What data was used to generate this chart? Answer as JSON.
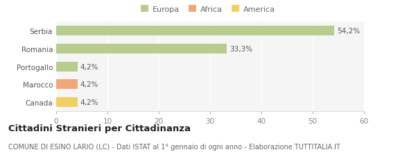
{
  "categories": [
    "Canada",
    "Marocco",
    "Portogallo",
    "Romania",
    "Serbia"
  ],
  "values": [
    4.2,
    4.2,
    4.2,
    33.3,
    54.2
  ],
  "colors": [
    "#f0d060",
    "#f0a878",
    "#b8cc90",
    "#b8cc90",
    "#b8cc90"
  ],
  "labels": [
    "4,2%",
    "4,2%",
    "4,2%",
    "33,3%",
    "54,2%"
  ],
  "legend_items": [
    {
      "label": "Europa",
      "color": "#b8cc90"
    },
    {
      "label": "Africa",
      "color": "#f0a878"
    },
    {
      "label": "America",
      "color": "#f0d060"
    }
  ],
  "xlim": [
    0,
    60
  ],
  "xticks": [
    0,
    10,
    20,
    30,
    40,
    50,
    60
  ],
  "title_bold": "Cittadini Stranieri per Cittadinanza",
  "subtitle": "COMUNE DI ESINO LARIO (LC) - Dati ISTAT al 1° gennaio di ogni anno - Elaborazione TUTTITALIA.IT",
  "background_color": "#ffffff",
  "plot_bg_color": "#f5f5f5",
  "grid_color": "#ffffff",
  "bar_height": 0.55,
  "label_fontsize": 7.5,
  "tick_fontsize": 7.5,
  "title_fontsize": 9.5,
  "subtitle_fontsize": 7.0,
  "legend_fontsize": 8.0
}
